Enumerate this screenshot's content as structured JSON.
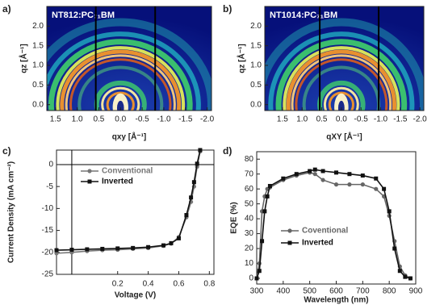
{
  "chart_data": [
    {
      "type": "image",
      "label": "a)",
      "title": "NT812:PC₇₁BM",
      "xlabel": "qxy [Å⁻¹]",
      "ylabel": "qz [Å⁻¹]",
      "xlim": [
        1.7,
        -2.1
      ],
      "ylim": [
        -0.15,
        2.5
      ],
      "xticks": [
        1.5,
        {
          "value": 1,
          "label": "1.0"
        },
        0.5,
        {
          "value": 0,
          "label": "0.0"
        },
        -0.5,
        {
          "value": -1,
          "label": "-1.0"
        },
        -1.5,
        {
          "value": -2,
          "label": "-2.0"
        }
      ],
      "yticks": [
        {
          "value": 0,
          "label": "0.0"
        },
        0.5,
        {
          "value": 1,
          "label": "1.0"
        },
        1.5,
        {
          "value": 2,
          "label": "2.0"
        }
      ],
      "vlines": [
        0.57,
        -0.8
      ]
    },
    {
      "type": "image",
      "label": "b)",
      "title": "NT1014:PC₇₁BM",
      "xlabel": "qXY [Å⁻¹]",
      "ylabel": "qz [Å⁻¹]",
      "xlim": [
        1.95,
        -2.1
      ],
      "ylim": [
        -0.15,
        2.5
      ],
      "xticks": [
        1.5,
        {
          "value": 1,
          "label": "1.0"
        },
        0.5,
        {
          "value": 0,
          "label": "0.0"
        },
        -0.5,
        {
          "value": -1,
          "label": "-1.0"
        },
        -1.5,
        {
          "value": -2,
          "label": "-2.0"
        }
      ],
      "yticks": [
        {
          "value": 0,
          "label": "0.0"
        },
        0.5,
        {
          "value": 1,
          "label": "1.0"
        },
        1.5,
        {
          "value": 2,
          "label": "2.0"
        }
      ],
      "vlines": [
        0.55,
        -0.95
      ]
    },
    {
      "type": "line",
      "label": "c)",
      "xlabel": "Voltage (V)",
      "ylabel": "Current Density (mA cm⁻²)",
      "xlim": [
        -0.2,
        0.83
      ],
      "ylim": [
        -25,
        3.3
      ],
      "xticks": [
        0.2,
        0.4,
        0.6,
        0.8
      ],
      "yticks": [
        0,
        -5,
        -10,
        -15,
        -20,
        -25
      ],
      "vlines": [
        -0.1
      ],
      "hlines": [
        0
      ],
      "legend": "upper left",
      "x": [
        -0.2,
        -0.1,
        0,
        0.1,
        0.2,
        0.3,
        0.4,
        0.5,
        0.55,
        0.6,
        0.65,
        0.68,
        0.7,
        0.72,
        0.74
      ],
      "series": [
        {
          "name": "Conventional",
          "color": "#777777",
          "marker": "circle",
          "values": [
            -20.2,
            -20.0,
            -19.7,
            -19.5,
            -19.4,
            -19.2,
            -19.0,
            -18.5,
            -18.0,
            -16.5,
            -12.0,
            -8.5,
            -5.0,
            -0.5,
            3.0
          ]
        },
        {
          "name": "Inverted",
          "color": "#111111",
          "marker": "square",
          "values": [
            -19.5,
            -19.4,
            -19.3,
            -19.2,
            -19.1,
            -19.0,
            -18.8,
            -18.4,
            -17.9,
            -16.8,
            -11.5,
            -7.5,
            -4.0,
            0.2,
            3.3
          ]
        }
      ]
    },
    {
      "type": "line",
      "label": "d)",
      "xlabel": "Wavelength (nm)",
      "ylabel": "EQE (%)",
      "xlim": [
        300,
        900
      ],
      "ylim": [
        -3.8,
        85
      ],
      "xticks": [
        300,
        400,
        500,
        600,
        700,
        800,
        900
      ],
      "yticks": [
        0,
        10,
        20,
        30,
        40,
        50,
        60,
        70,
        80
      ],
      "legend": "lower left",
      "x": [
        300,
        310,
        320,
        330,
        340,
        350,
        400,
        450,
        500,
        520,
        550,
        600,
        650,
        700,
        750,
        780,
        800,
        820,
        840,
        860,
        880
      ],
      "series": [
        {
          "name": "Coventional",
          "color": "#666666",
          "marker": "circle",
          "values": [
            0,
            10,
            45,
            55,
            60,
            61,
            66,
            69,
            71,
            70,
            66,
            63,
            63,
            63,
            60,
            55,
            42,
            25,
            8,
            2,
            0
          ]
        },
        {
          "name": "Inverted",
          "color": "#111111",
          "marker": "square",
          "values": [
            0,
            5,
            25,
            45,
            55,
            62,
            67,
            70,
            72,
            73,
            72,
            71,
            70,
            69,
            67,
            60,
            45,
            20,
            5,
            1,
            0
          ]
        }
      ]
    }
  ]
}
